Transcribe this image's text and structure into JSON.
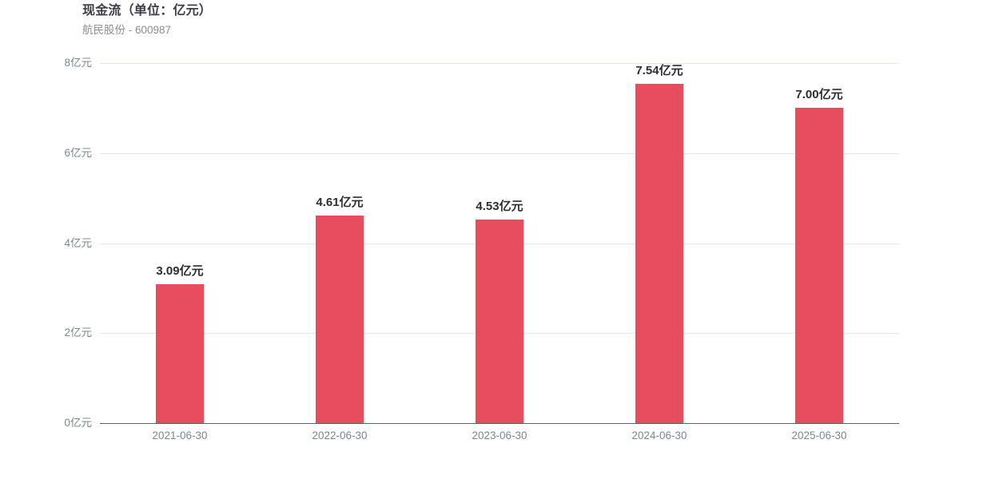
{
  "header": {
    "title": "现金流（单位：亿元）",
    "subtitle": "航民股份 - 600987"
  },
  "colors": {
    "bar": "#e84c5f",
    "gridline": "#e3e7f1",
    "axis_line": "#5a5f69",
    "axis_text": "#7f8590",
    "title_text": "#3d3d45",
    "subtitle_text": "#8c8c94",
    "value_label_text": "#2d2d33",
    "background": "#ffffff"
  },
  "chart_data": {
    "type": "bar",
    "title": "现金流（单位：亿元）",
    "subtitle": "航民股份 - 600987",
    "categories": [
      "2021-06-30",
      "2022-06-30",
      "2023-06-30",
      "2024-06-30",
      "2025-06-30"
    ],
    "values": [
      3.09,
      4.61,
      4.53,
      7.54,
      7.0
    ],
    "value_labels": [
      "3.09亿元",
      "4.61亿元",
      "4.53亿元",
      "7.54亿元",
      "7.00亿元"
    ],
    "unit": "亿元",
    "xlabel": "",
    "ylabel": "亿元",
    "ylim": [
      0,
      8
    ],
    "ytick_interval": 2,
    "ytick_values": [
      0,
      2,
      4,
      6,
      8
    ],
    "ytick_labels": [
      "0亿元",
      "2亿元",
      "4亿元",
      "6亿元",
      "8亿元"
    ],
    "grid": true,
    "legend_position": "none"
  }
}
